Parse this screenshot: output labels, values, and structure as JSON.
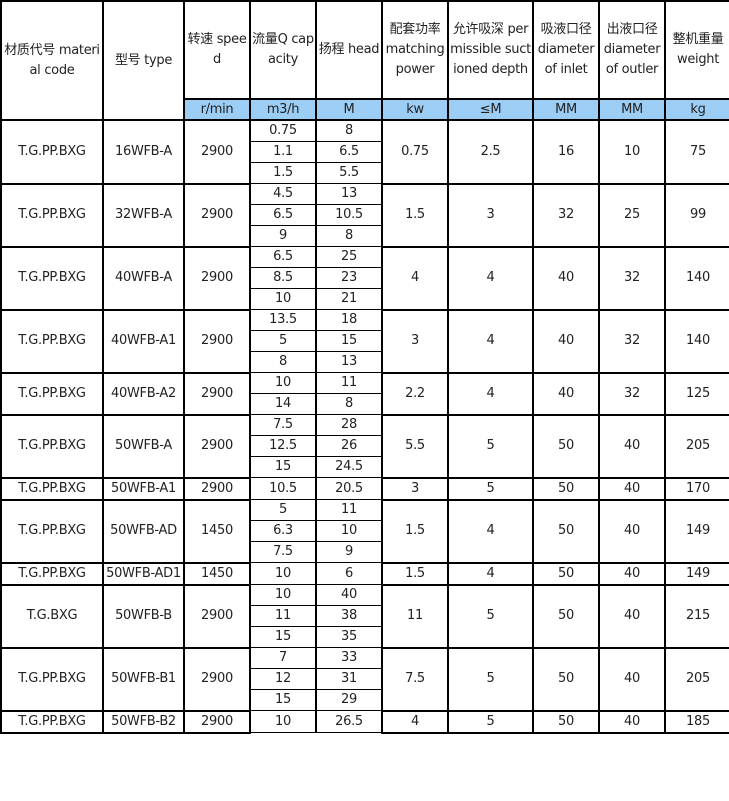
{
  "headers": [
    {
      "label": "材质代号 material code"
    },
    {
      "label": "型号 type"
    },
    {
      "label": "转速 speed",
      "unit": "r/min"
    },
    {
      "label": "流量Q capacity",
      "unit": "m3/h"
    },
    {
      "label": "扬程 head",
      "unit": "M"
    },
    {
      "label": "配套功率 matching power",
      "unit": "kw"
    },
    {
      "label": "允许吸深 permissible suctioned depth",
      "unit": "≤M"
    },
    {
      "label": "吸液口径 diameter of inlet",
      "unit": "MM"
    },
    {
      "label": "出液口径 diameter of outler",
      "unit": "MM"
    },
    {
      "label": "整机重量 weight",
      "unit": "kg"
    }
  ],
  "colors": {
    "unit_row_bg": "#9ccdf5"
  },
  "rows": [
    {
      "code": "T.G.PP.BXG",
      "type": "16WFB-A",
      "speed": "2900",
      "points": [
        [
          "0.75",
          "8"
        ],
        [
          "1.1",
          "6.5"
        ],
        [
          "1.5",
          "5.5"
        ]
      ],
      "power": "0.75",
      "depth": "2.5",
      "inlet": "16",
      "outlet": "10",
      "weight": "75"
    },
    {
      "code": "T.G.PP.BXG",
      "type": "32WFB-A",
      "speed": "2900",
      "points": [
        [
          "4.5",
          "13"
        ],
        [
          "6.5",
          "10.5"
        ],
        [
          "9",
          "8"
        ]
      ],
      "power": "1.5",
      "depth": "3",
      "inlet": "32",
      "outlet": "25",
      "weight": "99"
    },
    {
      "code": "T.G.PP.BXG",
      "type": "40WFB-A",
      "speed": "2900",
      "points": [
        [
          "6.5",
          "25"
        ],
        [
          "8.5",
          "23"
        ],
        [
          "10",
          "21"
        ]
      ],
      "power": "4",
      "depth": "4",
      "inlet": "40",
      "outlet": "32",
      "weight": "140"
    },
    {
      "code": "T.G.PP.BXG",
      "type": "40WFB-A1",
      "speed": "2900",
      "points": [
        [
          "13.5",
          "18"
        ],
        [
          "5",
          "15"
        ],
        [
          "8",
          "13"
        ]
      ],
      "power": "3",
      "depth": "4",
      "inlet": "40",
      "outlet": "32",
      "weight": "140"
    },
    {
      "code": "T.G.PP.BXG",
      "type": "40WFB-A2",
      "speed": "2900",
      "points": [
        [
          "10",
          "11"
        ],
        [
          "14",
          "8"
        ]
      ],
      "power": "2.2",
      "depth": "4",
      "inlet": "40",
      "outlet": "32",
      "weight": "125"
    },
    {
      "code": "T.G.PP.BXG",
      "type": "50WFB-A",
      "speed": "2900",
      "points": [
        [
          "7.5",
          "28"
        ],
        [
          "12.5",
          "26"
        ],
        [
          "15",
          "24.5"
        ]
      ],
      "power": "5.5",
      "depth": "5",
      "inlet": "50",
      "outlet": "40",
      "weight": "205"
    },
    {
      "code": "T.G.PP.BXG",
      "type": "50WFB-A1",
      "speed": "2900",
      "points": [
        [
          "10.5",
          "20.5"
        ]
      ],
      "power": "3",
      "depth": "5",
      "inlet": "50",
      "outlet": "40",
      "weight": "170"
    },
    {
      "code": "T.G.PP.BXG",
      "type": "50WFB-AD",
      "speed": "1450",
      "points": [
        [
          "5",
          "11"
        ],
        [
          "6.3",
          "10"
        ],
        [
          "7.5",
          "9"
        ]
      ],
      "power": "1.5",
      "depth": "4",
      "inlet": "50",
      "outlet": "40",
      "weight": "149"
    },
    {
      "code": "T.G.PP.BXG",
      "type": "50WFB-AD1",
      "speed": "1450",
      "points": [
        [
          "10",
          "6"
        ]
      ],
      "power": "1.5",
      "depth": "4",
      "inlet": "50",
      "outlet": "40",
      "weight": "149"
    },
    {
      "code": "T.G.BXG",
      "type": "50WFB-B",
      "speed": "2900",
      "points": [
        [
          "10",
          "40"
        ],
        [
          "11",
          "38"
        ],
        [
          "15",
          "35"
        ]
      ],
      "power": "11",
      "depth": "5",
      "inlet": "50",
      "outlet": "40",
      "weight": "215"
    },
    {
      "code": "T.G.PP.BXG",
      "type": "50WFB-B1",
      "speed": "2900",
      "points": [
        [
          "7",
          "33"
        ],
        [
          "12",
          "31"
        ],
        [
          "15",
          "29"
        ]
      ],
      "power": "7.5",
      "depth": "5",
      "inlet": "50",
      "outlet": "40",
      "weight": "205"
    },
    {
      "code": "T.G.PP.BXG",
      "type": "50WFB-B2",
      "speed": "2900",
      "points": [
        [
          "10",
          "26.5"
        ]
      ],
      "power": "4",
      "depth": "5",
      "inlet": "50",
      "outlet": "40",
      "weight": "185"
    }
  ]
}
